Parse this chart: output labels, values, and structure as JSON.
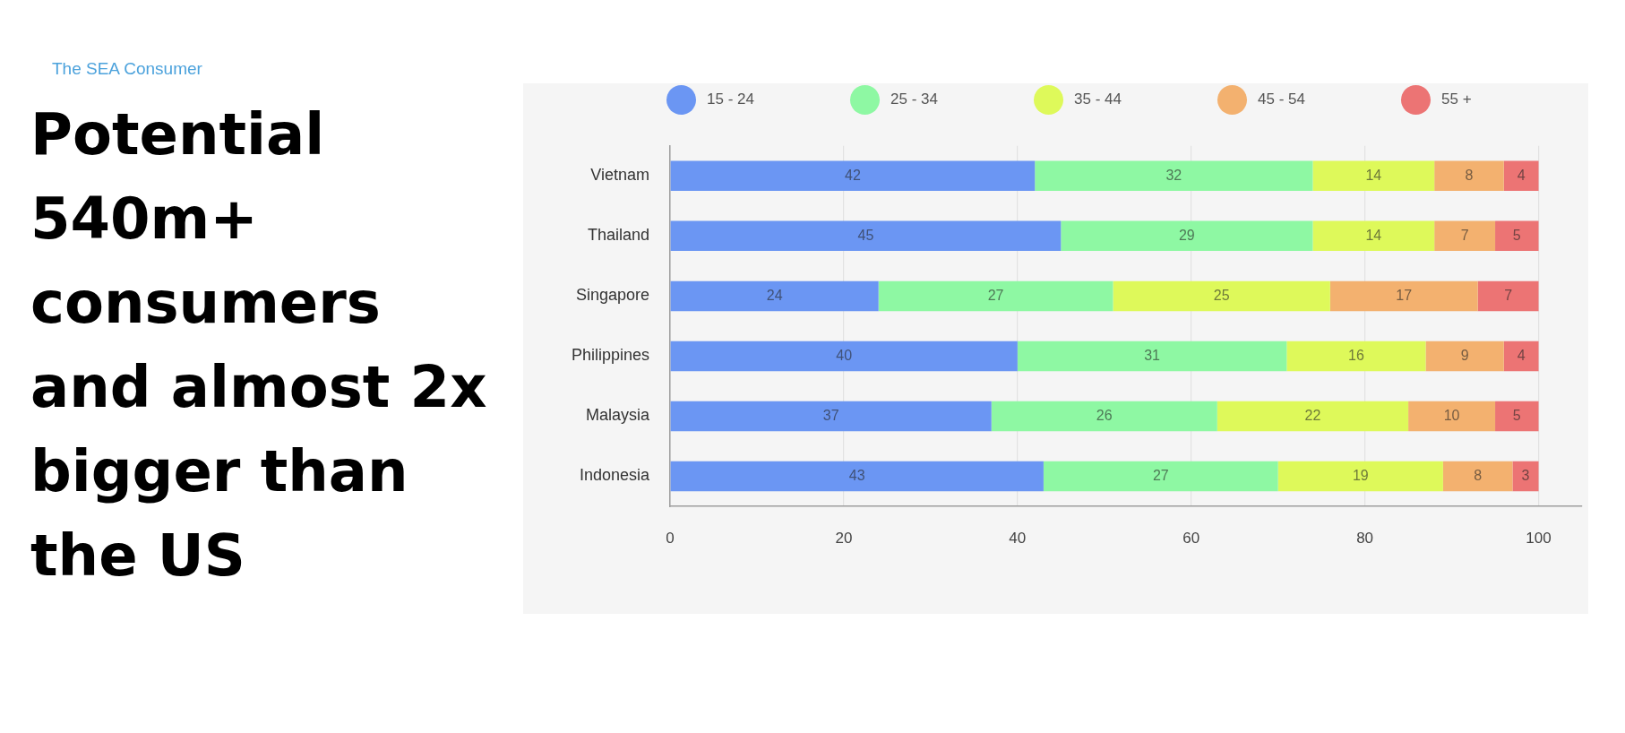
{
  "chart_data": {
    "type": "bar",
    "orientation": "horizontal",
    "stacked": true,
    "title": "Potential 540m+ consumers and almost 2x bigger than the US",
    "subtitle": "The SEA Consumer",
    "categories": [
      "Vietnam",
      "Thailand",
      "Singapore",
      "Philippines",
      "Malaysia",
      "Indonesia"
    ],
    "series": [
      {
        "name": "15 - 24",
        "color": "#6b96f3",
        "values": [
          42,
          45,
          24,
          40,
          37,
          43
        ]
      },
      {
        "name": "25 - 34",
        "color": "#8ef8a3",
        "values": [
          32,
          29,
          27,
          31,
          26,
          27
        ]
      },
      {
        "name": "35 - 44",
        "color": "#def95a",
        "values": [
          14,
          14,
          25,
          16,
          22,
          19
        ]
      },
      {
        "name": "45 - 54",
        "color": "#f3b16f",
        "values": [
          8,
          7,
          17,
          9,
          10,
          8
        ]
      },
      {
        "name": "55 +",
        "color": "#ec7474",
        "values": [
          4,
          5,
          7,
          4,
          5,
          3
        ]
      }
    ],
    "xlim": [
      0,
      105
    ],
    "xticks": [
      0,
      20,
      40,
      60,
      80,
      100
    ],
    "grid": "x",
    "legend": "top",
    "data_labels": true
  }
}
